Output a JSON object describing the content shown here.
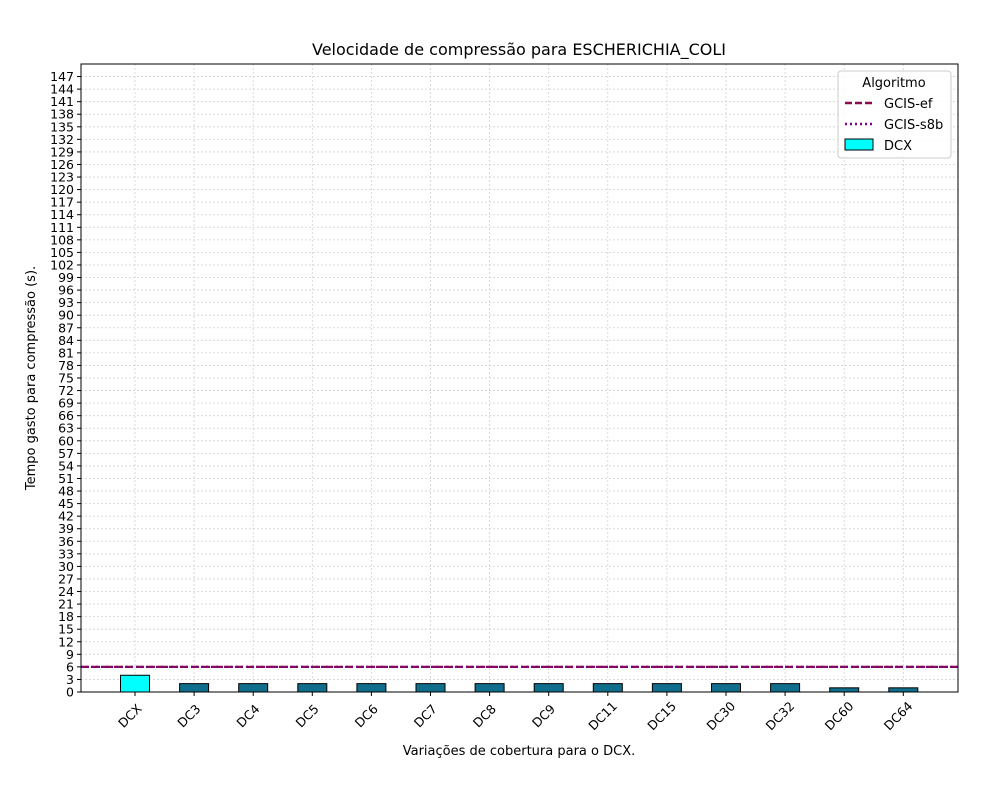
{
  "chart_data": {
    "type": "bar",
    "title": "Velocidade de compressão para  ESCHERICHIA_COLI",
    "xlabel": "Variações de cobertura para o DCX.",
    "ylabel": "Tempo gasto para compressão (s).",
    "categories": [
      "DCX",
      "DC3",
      "DC4",
      "DC5",
      "DC6",
      "DC7",
      "DC8",
      "DC9",
      "DC11",
      "DC15",
      "DC30",
      "DC32",
      "DC60",
      "DC64"
    ],
    "values": [
      4,
      2,
      2,
      2,
      2,
      2,
      2,
      2,
      2,
      2,
      2,
      2,
      1,
      1
    ],
    "ylim": [
      0,
      150
    ],
    "yticks": [
      0,
      3,
      6,
      9,
      12,
      15,
      18,
      21,
      24,
      27,
      30,
      33,
      36,
      39,
      42,
      45,
      48,
      51,
      54,
      57,
      60,
      63,
      66,
      69,
      72,
      75,
      78,
      81,
      84,
      87,
      90,
      93,
      96,
      99,
      102,
      105,
      108,
      111,
      114,
      117,
      120,
      123,
      126,
      129,
      132,
      135,
      138,
      141,
      144,
      147
    ],
    "grid": true,
    "legend": {
      "title": "Algoritmo",
      "placement": "top-right",
      "entries": [
        {
          "label": "GCIS-ef",
          "kind": "dashed-line",
          "color": "#8b0a50"
        },
        {
          "label": "GCIS-s8b",
          "kind": "dotted-line",
          "color": "#800080"
        },
        {
          "label": "DCX",
          "kind": "bar",
          "color": "#00ffff"
        }
      ]
    },
    "reference_lines": [
      {
        "name": "GCIS-ef",
        "value": 6,
        "style": "dashed",
        "color": "#8b0a50"
      },
      {
        "name": "GCIS-s8b",
        "value": 6,
        "style": "dotted",
        "color": "#800080"
      }
    ],
    "colors": {
      "highlight_bar": "#00ffff",
      "bar": "#0e6e8c"
    }
  }
}
